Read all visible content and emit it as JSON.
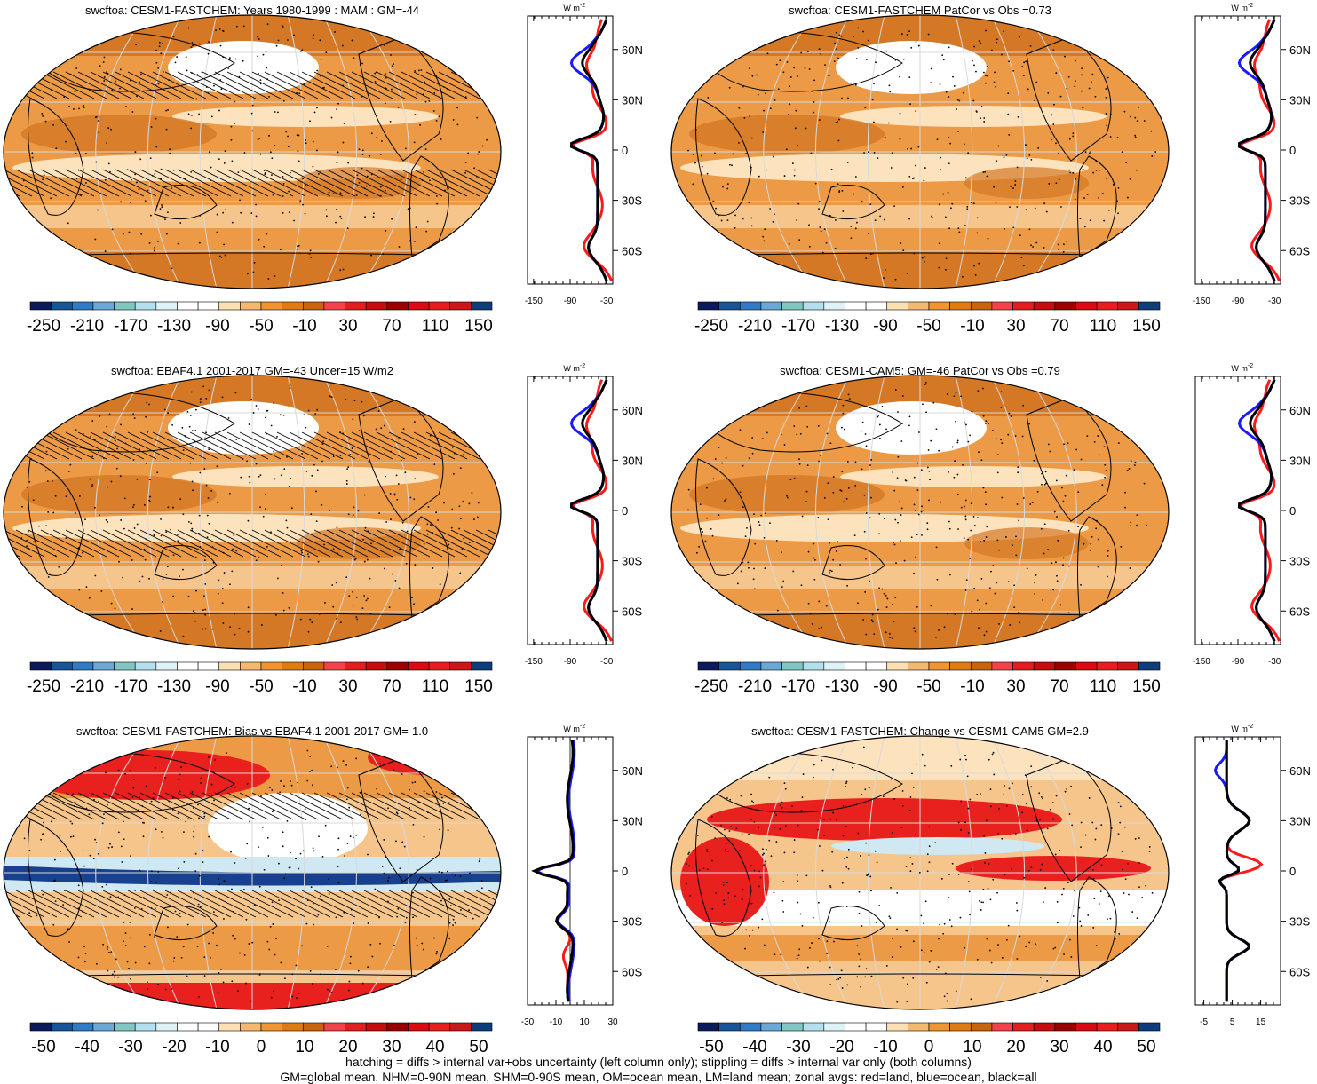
{
  "panels": [
    {
      "title": "swcftoa: CESM1-FASTCHEM: Years 1980-1999 : MAM : GM=-44",
      "colorbar": "full",
      "zonal_ticks": [
        "-150",
        "-90",
        "-30"
      ],
      "zonal_range": [
        -160,
        -20
      ],
      "hatching": true,
      "kind": "mean"
    },
    {
      "title": "swcftoa: CESM1-FASTCHEM PatCor vs Obs =0.73",
      "colorbar": "full",
      "zonal_ticks": [
        "-150",
        "-90",
        "-30"
      ],
      "zonal_range": [
        -160,
        -20
      ],
      "hatching": false,
      "kind": "mean"
    },
    {
      "title": "swcftoa: EBAF4.1 2001-2017 GM=-43 Uncer=15 W/m2",
      "colorbar": "full",
      "zonal_ticks": [
        "-150",
        "-90",
        "-30"
      ],
      "zonal_range": [
        -160,
        -20
      ],
      "hatching": true,
      "kind": "mean"
    },
    {
      "title": "swcftoa: CESM1-CAM5: GM=-46 PatCor vs Obs =0.79",
      "colorbar": "full",
      "zonal_ticks": [
        "-150",
        "-90",
        "-30"
      ],
      "zonal_range": [
        -160,
        -20
      ],
      "hatching": false,
      "kind": "mean"
    },
    {
      "title": "swcftoa: CESM1-FASTCHEM: Bias vs EBAF4.1 2001-2017 GM=-1.0",
      "colorbar": "diff",
      "zonal_ticks": [
        "-30",
        "-10",
        "10",
        "30"
      ],
      "zonal_range": [
        -30,
        30
      ],
      "hatching": true,
      "kind": "bias"
    },
    {
      "title": "swcftoa: CESM1-FASTCHEM: Change vs CESM1-CAM5 GM=2.9",
      "colorbar": "diff",
      "zonal_ticks": [
        "-5",
        "5",
        "15"
      ],
      "zonal_range": [
        -8,
        22
      ],
      "hatching": false,
      "kind": "change"
    }
  ],
  "colorbars": {
    "full": {
      "labels": [
        "-250",
        "-210",
        "-170",
        "-130",
        "-90",
        "-50",
        "-10",
        "30",
        "70",
        "110",
        "150"
      ],
      "colors": [
        "#0a1a5c",
        "#17559b",
        "#2f7cc4",
        "#6aa8d8",
        "#7fc7c0",
        "#b3e0ee",
        "#def3f8",
        "#ffffff",
        "#ffffff",
        "#fbe0b4",
        "#f5b870",
        "#ef9533",
        "#e07a14",
        "#c8650e",
        "#f0444a",
        "#e0201e",
        "#c40d0d",
        "#9a0000",
        "#d80b12",
        "#e61e1e",
        "#c81818",
        "#0d3d7a"
      ]
    },
    "diff": {
      "labels": [
        "-50",
        "-40",
        "-30",
        "-20",
        "-10",
        "0",
        "10",
        "20",
        "30",
        "40",
        "50"
      ],
      "colors": [
        "#0a1a5c",
        "#17559b",
        "#2f7cc4",
        "#6aa8d8",
        "#7fc7c0",
        "#b3e0ee",
        "#def3f8",
        "#ffffff",
        "#ffffff",
        "#fbe0b4",
        "#f5b870",
        "#ef9533",
        "#e07a14",
        "#c8650e",
        "#f0444a",
        "#e0201e",
        "#c40d0d",
        "#9a0000",
        "#d80b12",
        "#e61e1e",
        "#c81818",
        "#0d3d7a"
      ]
    }
  },
  "lat_labels": [
    "60N",
    "30N",
    "0",
    "30S",
    "60S"
  ],
  "units_label": "W m",
  "units_sup": "-2",
  "legend_colors": {
    "land": "#ff1a1a",
    "ocean": "#1a1aff",
    "all": "#000000"
  },
  "map_colors": {
    "dark": "#d47826",
    "mid": "#ec9a45",
    "light": "#f6c58c",
    "pale": "#fde3bd",
    "white": "#ffffff"
  },
  "footer": [
    "hatching = diffs > internal var+obs uncertainty (left column only); stippling = diffs > internal var only (both columns)",
    "GM=global mean, NHM=0-90N mean, SHM=0-90S mean, OM=ocean mean, LM=land mean; zonal avgs: red=land, blue=ocean, black=all"
  ]
}
